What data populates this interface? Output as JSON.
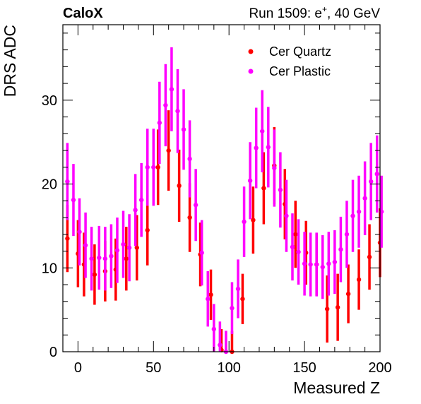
{
  "header": {
    "left_label": "CaloX",
    "right_label_prefix": "Run 1509: e",
    "right_label_sup": "+",
    "right_label_suffix": ", 40 GeV"
  },
  "chart_data": {
    "type": "scatter",
    "xlabel": "Measured Z",
    "ylabel": "DRS ADC",
    "xlim": [
      -10,
      200
    ],
    "ylim": [
      0,
      39
    ],
    "xticks": [
      0,
      50,
      100,
      150,
      200
    ],
    "yticks": [
      0,
      10,
      20,
      30
    ],
    "grid": false,
    "legend_position": "top-right",
    "series": [
      {
        "name": "Cer Quartz",
        "color": "#ff0000",
        "x": [
          -7,
          0,
          4,
          11,
          18,
          25,
          32,
          39,
          46,
          53,
          60,
          67,
          74,
          81,
          88,
          95,
          102,
          109,
          116,
          123,
          130,
          137,
          144,
          151,
          158,
          165,
          172,
          179,
          186,
          193,
          200
        ],
        "y": [
          13.5,
          11.7,
          10.4,
          9.2,
          9.6,
          9.8,
          11.1,
          12.4,
          14.5,
          22.0,
          24.0,
          19.8,
          16.0,
          11.6,
          6.8,
          0.2,
          0.0,
          6.3,
          15.7,
          19.5,
          22.2,
          17.6,
          14.0,
          11.8,
          10.4,
          5.1,
          5.3,
          6.9,
          8.6,
          11.3,
          13.0
        ],
        "err": [
          4.0,
          4.0,
          3.8,
          3.6,
          3.6,
          3.7,
          3.8,
          3.9,
          4.2,
          4.5,
          4.8,
          4.3,
          4.1,
          3.8,
          3.0,
          2.5,
          2.5,
          3.0,
          4.0,
          4.3,
          4.6,
          4.2,
          4.0,
          3.8,
          3.7,
          4.0,
          4.0,
          3.5,
          3.6,
          3.9,
          4.1
        ]
      },
      {
        "name": "Cer Plastic",
        "color": "#ff00ff",
        "x": [
          -7,
          -3,
          1,
          5,
          9,
          14,
          18,
          22,
          26,
          30,
          34,
          38,
          42,
          46,
          50,
          54,
          58,
          62,
          66,
          70,
          74,
          78,
          82,
          86,
          90,
          94,
          98,
          102,
          106,
          110,
          114,
          118,
          122,
          126,
          130,
          134,
          138,
          142,
          146,
          150,
          154,
          158,
          162,
          166,
          170,
          174,
          178,
          182,
          186,
          190,
          194,
          198,
          201
        ],
        "y": [
          20.3,
          18.1,
          14.3,
          12.7,
          11.1,
          11.2,
          11.1,
          11.4,
          12.1,
          12.8,
          12.4,
          16.9,
          18.1,
          22.0,
          22.0,
          27.3,
          29.4,
          31.3,
          28.7,
          26.5,
          23.0,
          17.5,
          11.8,
          6.3,
          2.7,
          0.8,
          0.0,
          5.2,
          7.5,
          15.5,
          20.4,
          24.3,
          26.3,
          24.4,
          21.9,
          19.3,
          16.2,
          12.5,
          11.9,
          10.5,
          10.4,
          10.4,
          10.1,
          10.5,
          10.7,
          12.2,
          14.0,
          16.2,
          16.7,
          18.3,
          20.3,
          21.2,
          16.7
        ],
        "err": [
          4.6,
          4.3,
          4.0,
          3.9,
          3.8,
          3.8,
          3.8,
          3.8,
          3.9,
          4.0,
          4.0,
          4.3,
          4.4,
          4.6,
          4.6,
          4.9,
          4.9,
          5.0,
          5.0,
          4.8,
          4.6,
          4.3,
          3.9,
          3.3,
          3.0,
          2.8,
          2.5,
          3.1,
          3.5,
          4.2,
          4.6,
          4.8,
          4.9,
          4.8,
          4.6,
          4.5,
          4.3,
          4.0,
          3.9,
          3.8,
          3.8,
          3.8,
          3.8,
          3.8,
          3.8,
          3.9,
          4.0,
          4.3,
          4.3,
          4.4,
          4.6,
          4.6,
          4.3
        ]
      }
    ]
  }
}
